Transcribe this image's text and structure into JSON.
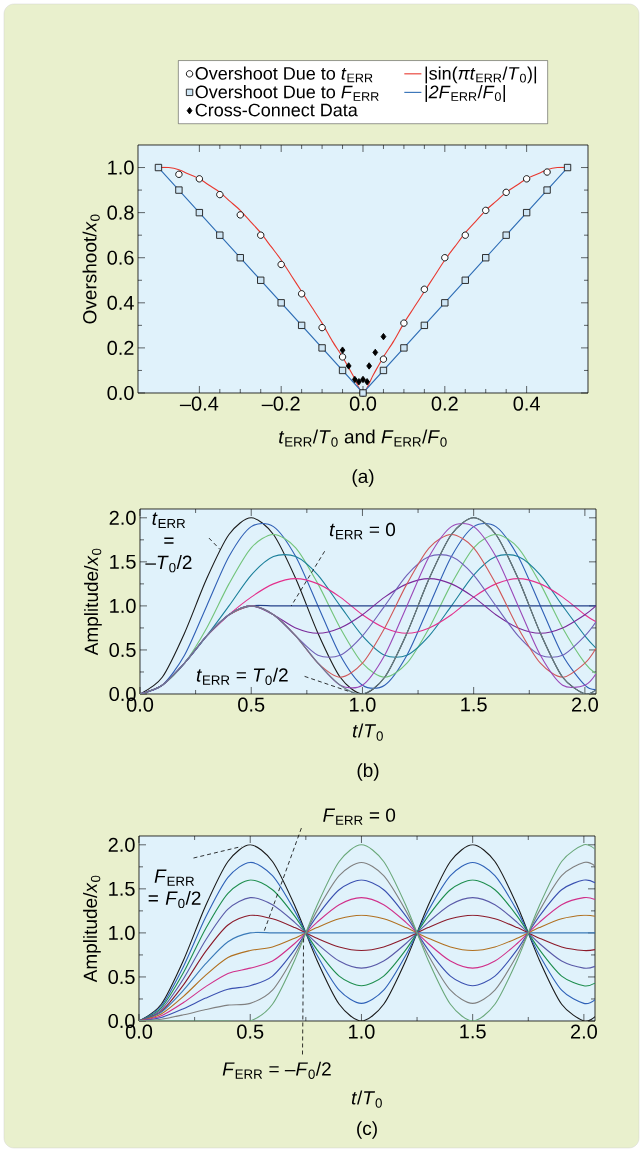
{
  "chart_data": [
    {
      "type": "scatter",
      "xlabel": "*t*$_{ERR}$/*T*$_{0}$ and *F*$_{ERR}$/*F*$_{0}$",
      "ylabel": "Overshoot/*x*$_{0}$",
      "xlim": [
        -0.55,
        0.55
      ],
      "ylim": [
        0,
        1.1
      ],
      "xticks": [
        {
          "value": -0.4,
          "label": "–0.4"
        },
        {
          "value": -0.2,
          "label": "–0.2"
        },
        {
          "value": 0,
          "label": "0.0"
        },
        0.2,
        0.4
      ],
      "yticks": [
        {
          "value": 0,
          "label": "0.0"
        },
        0.2,
        0.4,
        0.6,
        0.8,
        {
          "value": 1,
          "label": "1.0"
        }
      ],
      "legend": "top",
      "annotations": [
        "(a)"
      ],
      "series": [
        {
          "name": "Overshoot Due to *t*$_{ERR}$",
          "type": "scatter",
          "marker": "circle",
          "color": "#000000",
          "x": [
            -0.45,
            -0.4,
            -0.35,
            -0.3,
            -0.25,
            -0.2,
            -0.15,
            -0.1,
            -0.05,
            0,
            0.05,
            0.1,
            0.15,
            0.2,
            0.25,
            0.3,
            0.35,
            0.4,
            0.45
          ],
          "values": [
            0.97,
            0.95,
            0.88,
            0.79,
            0.7,
            0.57,
            0.44,
            0.29,
            0.16,
            0,
            0.15,
            0.31,
            0.46,
            0.6,
            0.7,
            0.81,
            0.89,
            0.95,
            0.98
          ]
        },
        {
          "name": "|sin(*πt*$_{ERR}$/*T*$_{0}$)|",
          "type": "line",
          "color": "#e8382f",
          "x": [
            -0.5,
            -0.475,
            -0.45,
            -0.425,
            -0.4,
            -0.375,
            -0.35,
            -0.325,
            -0.3,
            -0.275,
            -0.25,
            -0.225,
            -0.2,
            -0.175,
            -0.15,
            -0.125,
            -0.1,
            -0.075,
            -0.05,
            -0.025,
            0,
            0.025,
            0.05,
            0.075,
            0.1,
            0.125,
            0.15,
            0.175,
            0.2,
            0.225,
            0.25,
            0.275,
            0.3,
            0.325,
            0.35,
            0.375,
            0.4,
            0.425,
            0.45,
            0.475,
            0.5
          ],
          "values": [
            1,
            1,
            0.99,
            0.97,
            0.95,
            0.92,
            0.89,
            0.85,
            0.81,
            0.76,
            0.71,
            0.65,
            0.59,
            0.52,
            0.45,
            0.38,
            0.31,
            0.23,
            0.16,
            0.08,
            0,
            0.08,
            0.16,
            0.23,
            0.31,
            0.38,
            0.45,
            0.52,
            0.59,
            0.65,
            0.71,
            0.76,
            0.81,
            0.85,
            0.89,
            0.92,
            0.95,
            0.97,
            0.99,
            1,
            1
          ]
        },
        {
          "name": "Overshoot Due to *F*$_{ERR}$",
          "type": "scatter",
          "marker": "square",
          "color": "#1a1a1a",
          "x": [
            -0.5,
            -0.45,
            -0.4,
            -0.35,
            -0.3,
            -0.25,
            -0.2,
            -0.15,
            -0.1,
            -0.05,
            0,
            0.05,
            0.1,
            0.15,
            0.2,
            0.25,
            0.3,
            0.35,
            0.4,
            0.45,
            0.5
          ],
          "values": [
            1,
            0.9,
            0.8,
            0.7,
            0.6,
            0.5,
            0.4,
            0.3,
            0.2,
            0.1,
            0,
            0.1,
            0.2,
            0.3,
            0.4,
            0.5,
            0.6,
            0.7,
            0.8,
            0.9,
            1
          ]
        },
        {
          "name": "|*2F*$_{ERR}$/*F*$_{0}$|",
          "type": "line",
          "color": "#2e6db5",
          "x": [
            -0.5,
            0,
            0.5
          ],
          "values": [
            1,
            0,
            1
          ]
        },
        {
          "name": "Cross-Connect Data",
          "type": "scatter",
          "marker": "diamond",
          "color": "#000000",
          "x": [
            -0.05,
            -0.035,
            -0.02,
            -0.01,
            0,
            0.01,
            0.015,
            0.03,
            0.05
          ],
          "values": [
            0.19,
            0.12,
            0.06,
            0.05,
            0.06,
            0.05,
            0.12,
            0.18,
            0.25
          ]
        }
      ]
    },
    {
      "type": "line",
      "xlabel": "*t*/*T*$_{0}$",
      "ylabel": "Amplitude/*x*$_{0}$",
      "xlim": [
        0,
        2.05
      ],
      "ylim": [
        0,
        2.1
      ],
      "xticks": [
        {
          "value": 0,
          "label": "0.0"
        },
        0.5,
        {
          "value": 1,
          "label": "1.0"
        },
        1.5,
        {
          "value": 2,
          "label": "2.0"
        }
      ],
      "yticks": [
        {
          "value": 0,
          "label": "0.0"
        },
        0.5,
        {
          "value": 1,
          "label": "1.0"
        },
        1.5,
        {
          "value": 2,
          "label": "2.0"
        }
      ],
      "x": [
        0,
        0.1,
        0.2,
        0.3,
        0.4,
        0.5,
        0.6,
        0.7,
        0.8,
        0.9,
        1.0,
        1.1,
        1.2,
        1.3,
        1.4,
        1.5,
        1.6,
        1.7,
        1.8,
        1.9,
        2.0,
        2.05
      ],
      "annotations": [
        {
          "text": "*t*$_{ERR}$ = –*T*$_{0}$/2",
          "x": 0.36,
          "y": 1.64
        },
        {
          "text": "*t*$_{ERR}$ = 0",
          "x": 0.68,
          "y": 1.0
        },
        {
          "text": "*t*$_{ERR}$ = *T*$_{0}$/2",
          "x": 0.95,
          "y": 0.02
        },
        "(b)"
      ],
      "series": [
        {
          "color": "#1a1a1a",
          "values": [
            0,
            0.19,
            0.69,
            1.31,
            1.81,
            2,
            1.81,
            1.31,
            0.69,
            0.19,
            0,
            0.19,
            0.69,
            1.31,
            1.81,
            2,
            1.81,
            1.31,
            0.69,
            0.19,
            0,
            0.05
          ]
        },
        {
          "color": "#2f5fb5",
          "values": [
            0,
            0.1,
            0.44,
            1,
            1.56,
            1.9,
            1.9,
            1.56,
            1,
            0.44,
            0.1,
            0.1,
            0.44,
            1,
            1.56,
            1.9,
            1.9,
            1.56,
            1,
            0.44,
            0.1,
            0.05
          ]
        },
        {
          "color": "#72c47a",
          "values": [
            0,
            0.1,
            0.35,
            0.75,
            1.25,
            1.66,
            1.81,
            1.66,
            1.25,
            0.75,
            0.35,
            0.19,
            0.35,
            0.75,
            1.25,
            1.66,
            1.81,
            1.66,
            1.25,
            0.75,
            0.35,
            0.23
          ]
        },
        {
          "color": "#1a7f9a",
          "values": [
            0,
            0.1,
            0.35,
            0.66,
            1,
            1.35,
            1.56,
            1.56,
            1.35,
            1,
            0.66,
            0.44,
            0.44,
            0.66,
            1,
            1.35,
            1.56,
            1.56,
            1.35,
            1,
            0.66,
            0.52
          ]
        },
        {
          "color": "#e3308c",
          "values": [
            null,
            null,
            null,
            0.66,
            0.9,
            1.1,
            1.25,
            1.31,
            1.25,
            1.1,
            0.9,
            0.75,
            0.69,
            0.75,
            0.9,
            1.1,
            1.25,
            1.31,
            1.25,
            1.1,
            0.9,
            0.82
          ]
        },
        {
          "color": "#23408a",
          "values": [
            0,
            0.1,
            0.35,
            0.66,
            0.9,
            1,
            1,
            1,
            1,
            1,
            1,
            1,
            1,
            1,
            1,
            1,
            1,
            1,
            1,
            1,
            1,
            1
          ]
        },
        {
          "color": "#7a2a9a",
          "values": [
            0,
            0.1,
            0.35,
            0.66,
            0.9,
            1,
            0.9,
            0.75,
            0.69,
            0.75,
            0.9,
            1.1,
            1.25,
            1.31,
            1.25,
            1.1,
            0.9,
            0.75,
            0.69,
            0.75,
            0.9,
            1
          ]
        },
        {
          "color": "#7060b8",
          "values": [
            0,
            0.1,
            0.35,
            0.66,
            0.9,
            1,
            0.9,
            0.66,
            0.44,
            0.44,
            0.66,
            1,
            1.35,
            1.56,
            1.56,
            1.35,
            1,
            0.66,
            0.44,
            0.44,
            0.66,
            0.82
          ]
        },
        {
          "color": "#d0585a",
          "values": [
            null,
            null,
            null,
            null,
            0.9,
            1,
            0.9,
            0.66,
            0.35,
            0.19,
            0.35,
            0.75,
            1.25,
            1.66,
            1.81,
            1.66,
            1.25,
            0.75,
            0.35,
            0.19,
            0.35,
            0.52
          ]
        },
        {
          "color": "#9a48b8",
          "values": [
            0,
            0.1,
            0.35,
            0.66,
            0.9,
            1,
            0.9,
            0.66,
            0.35,
            0.1,
            0.1,
            0.44,
            1,
            1.56,
            1.9,
            1.9,
            1.56,
            1,
            0.44,
            0.1,
            0.1,
            0.23
          ]
        },
        {
          "color": "#6a8088",
          "values": [
            0,
            0.1,
            0.35,
            0.66,
            0.9,
            1,
            0.9,
            0.66,
            0.35,
            0.1,
            0,
            0.19,
            0.69,
            1.31,
            1.81,
            2,
            1.81,
            1.31,
            0.69,
            0.19,
            0,
            0.05
          ]
        }
      ]
    },
    {
      "type": "line",
      "xlabel": "*t*/*T*$_{0}$",
      "ylabel": "Amplitude/*x*$_{0}$",
      "xlim": [
        0,
        2.05
      ],
      "ylim": [
        0,
        2.1
      ],
      "xticks": [
        {
          "value": 0,
          "label": "0.0"
        },
        0.5,
        {
          "value": 1,
          "label": "1.0"
        },
        1.5,
        {
          "value": 2,
          "label": "2.0"
        }
      ],
      "yticks": [
        {
          "value": 0,
          "label": "0.0"
        },
        0.5,
        {
          "value": 1,
          "label": "1.0"
        },
        1.5,
        {
          "value": 2,
          "label": "2.0"
        }
      ],
      "x": [
        0,
        0.1,
        0.2,
        0.3,
        0.4,
        0.5,
        0.6,
        0.7,
        0.8,
        0.9,
        1.0,
        1.1,
        1.2,
        1.3,
        1.4,
        1.5,
        1.6,
        1.7,
        1.8,
        1.9,
        2.0,
        2.05
      ],
      "annotations": [
        {
          "text": "*F*$_{ERR}$ = 0",
          "x": 0.56,
          "y": 1.0
        },
        {
          "text": "*F*$_{ERR}$ = *F*$_{0}$/2",
          "x": 0.46,
          "y": 1.98
        },
        {
          "text": "*F*$_{ERR}$ = –*F*$_{0}$/2",
          "x": 0.74,
          "y": 0.95
        },
        "(c)"
      ],
      "series": [
        {
          "color": "#1a1a1a",
          "values": [
            0,
            0.19,
            0.69,
            1.31,
            1.81,
            2,
            1.81,
            1.31,
            0.69,
            0.19,
            0,
            0.19,
            0.69,
            1.31,
            1.81,
            2,
            1.81,
            1.31,
            0.69,
            0.19,
            0,
            0.05
          ]
        },
        {
          "color": "#2f62b8",
          "values": [
            0,
            0.17,
            0.62,
            1.18,
            1.63,
            1.8,
            1.65,
            1.25,
            0.75,
            0.35,
            0.2,
            0.35,
            0.75,
            1.25,
            1.65,
            1.8,
            1.65,
            1.25,
            0.75,
            0.35,
            0.2,
            0.24
          ]
        },
        {
          "color": "#1e8e4e",
          "values": [
            0,
            0.15,
            0.55,
            1.05,
            1.45,
            1.6,
            1.49,
            1.19,
            0.81,
            0.51,
            0.4,
            0.51,
            0.81,
            1.19,
            1.49,
            1.6,
            1.49,
            1.19,
            0.81,
            0.51,
            0.4,
            0.43
          ]
        },
        {
          "color": "#5a5aa8",
          "values": [
            0,
            0.13,
            0.48,
            0.92,
            1.27,
            1.4,
            1.32,
            1.12,
            0.88,
            0.68,
            0.6,
            0.68,
            0.88,
            1.12,
            1.32,
            1.4,
            1.32,
            1.12,
            0.88,
            0.68,
            0.6,
            0.62
          ]
        },
        {
          "color": "#8b1a2a",
          "values": [
            0,
            0.11,
            0.41,
            0.79,
            1.09,
            1.2,
            1.16,
            1.06,
            0.94,
            0.84,
            0.8,
            0.84,
            0.94,
            1.06,
            1.16,
            1.2,
            1.16,
            1.06,
            0.94,
            0.84,
            0.8,
            0.81
          ]
        },
        {
          "color": "#3a7ab8",
          "values": [
            0,
            0.1,
            0.35,
            0.65,
            0.9,
            1,
            1,
            1,
            1,
            1,
            1,
            1,
            1,
            1,
            1,
            1,
            1,
            1,
            1,
            1,
            1,
            1
          ]
        },
        {
          "color": "#b07020",
          "values": [
            0,
            0.08,
            0.28,
            0.52,
            0.72,
            0.8,
            0.84,
            0.94,
            1.06,
            1.16,
            1.2,
            1.16,
            1.06,
            0.94,
            0.84,
            0.8,
            0.84,
            0.94,
            1.06,
            1.16,
            1.2,
            1.19
          ]
        },
        {
          "color": "#d0308a",
          "values": [
            0,
            0.06,
            0.21,
            0.39,
            0.54,
            0.6,
            0.68,
            0.88,
            1.12,
            1.32,
            1.4,
            1.32,
            1.12,
            0.88,
            0.68,
            0.6,
            0.68,
            0.88,
            1.12,
            1.32,
            1.4,
            1.38
          ]
        },
        {
          "color": "#3a50b0",
          "values": [
            0,
            0.04,
            0.14,
            0.26,
            0.36,
            0.4,
            0.51,
            0.81,
            1.19,
            1.49,
            1.6,
            1.49,
            1.19,
            0.81,
            0.51,
            0.4,
            0.51,
            0.81,
            1.19,
            1.49,
            1.6,
            1.57
          ]
        },
        {
          "color": "#808080",
          "values": [
            0,
            0.02,
            0.07,
            0.13,
            0.18,
            0.2,
            0.35,
            0.75,
            1.25,
            1.65,
            1.8,
            1.65,
            1.25,
            0.75,
            0.35,
            0.2,
            0.35,
            0.75,
            1.25,
            1.65,
            1.8,
            1.76
          ]
        },
        {
          "color": "#6aa87a",
          "values": [
            0,
            0,
            0,
            0,
            0,
            0,
            0.19,
            0.69,
            1.31,
            1.81,
            2,
            1.81,
            1.31,
            0.69,
            0.19,
            0,
            0.19,
            0.69,
            1.31,
            1.81,
            2,
            1.95
          ]
        }
      ]
    }
  ]
}
